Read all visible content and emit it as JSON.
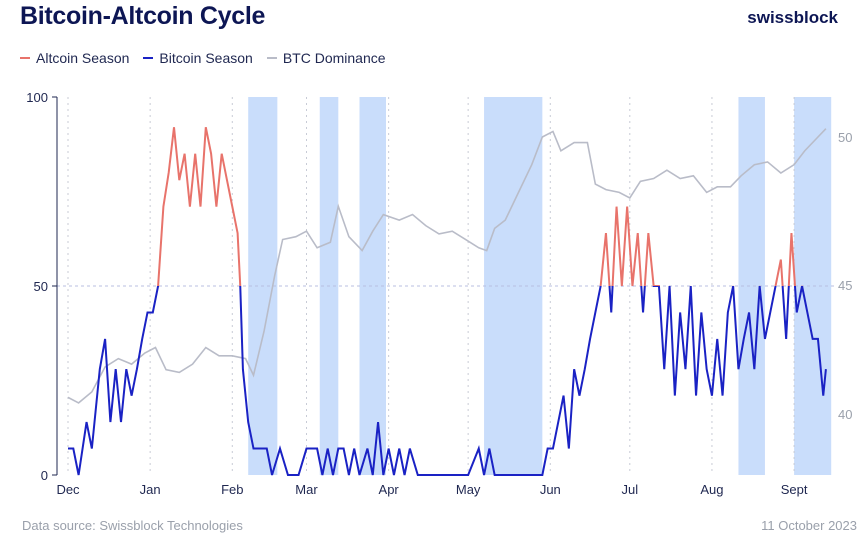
{
  "header": {
    "title": "Bitcoin-Altcoin Cycle",
    "logo": "swissblock"
  },
  "footer": {
    "source": "Data source: Swissblock Technologies",
    "date": "11 October 2023"
  },
  "chart_data": {
    "type": "line",
    "title": "Bitcoin-Altcoin Cycle",
    "legend_placement": "top-left",
    "grid": "dashed vertical at months, dashed horizontal at 50",
    "colors": {
      "altcoin": "#e8736b",
      "bitcoin": "#1a22c4",
      "dominance": "#b9bcc8",
      "shade": "#c9ddfb"
    },
    "x_ticks": [
      [
        "2022-12-01",
        "Dec"
      ],
      [
        "2023-01-01",
        "Jan"
      ],
      [
        "2023-02-01",
        "Feb"
      ],
      [
        "2023-03-01",
        "Mar"
      ],
      [
        "2023-04-01",
        "Apr"
      ],
      [
        "2023-05-01",
        "May"
      ],
      [
        "2023-06-01",
        "Jun"
      ],
      [
        "2023-07-01",
        "Jul"
      ],
      [
        "2023-08-01",
        "Aug"
      ],
      [
        "2023-09-01",
        "Sept"
      ]
    ],
    "y_left": {
      "range": [
        0,
        100
      ],
      "ticks": [
        "0",
        "50",
        "100"
      ]
    },
    "y_right": {
      "range": [
        40,
        50
      ],
      "ticks": [
        "40",
        "45",
        "50"
      ]
    },
    "shaded_periods": [
      [
        "2023-02-07",
        "2023-02-18"
      ],
      [
        "2023-03-06",
        "2023-03-13"
      ],
      [
        "2023-03-21",
        "2023-03-31"
      ],
      [
        "2023-05-07",
        "2023-05-29"
      ],
      [
        "2023-08-11",
        "2023-08-21"
      ],
      [
        "2023-09-01",
        "2023-09-15"
      ]
    ],
    "series": [
      {
        "name": "Altcoin Season",
        "note_axis": "left",
        "threshold_above": 50
      },
      {
        "name": "Bitcoin Season",
        "note_axis": "left"
      },
      {
        "name": "BTC Dominance",
        "note_axis": "right",
        "points": [
          [
            "2022-12-01",
            40.6
          ],
          [
            "2022-12-05",
            40.4
          ],
          [
            "2022-12-10",
            40.8
          ],
          [
            "2022-12-15",
            41.7
          ],
          [
            "2022-12-20",
            42.0
          ],
          [
            "2022-12-25",
            41.8
          ],
          [
            "2022-12-30",
            42.2
          ],
          [
            "2023-01-03",
            42.4
          ],
          [
            "2023-01-07",
            41.6
          ],
          [
            "2023-01-12",
            41.5
          ],
          [
            "2023-01-17",
            41.8
          ],
          [
            "2023-01-22",
            42.4
          ],
          [
            "2023-01-27",
            42.1
          ],
          [
            "2023-02-01",
            42.1
          ],
          [
            "2023-02-06",
            42.0
          ],
          [
            "2023-02-09",
            41.4
          ],
          [
            "2023-02-13",
            43.0
          ],
          [
            "2023-02-17",
            45.0
          ],
          [
            "2023-02-20",
            46.3
          ],
          [
            "2023-02-25",
            46.4
          ],
          [
            "2023-03-01",
            46.6
          ],
          [
            "2023-03-05",
            46.0
          ],
          [
            "2023-03-10",
            46.2
          ],
          [
            "2023-03-13",
            47.5
          ],
          [
            "2023-03-17",
            46.4
          ],
          [
            "2023-03-22",
            45.9
          ],
          [
            "2023-03-26",
            46.6
          ],
          [
            "2023-03-30",
            47.2
          ],
          [
            "2023-04-05",
            47.0
          ],
          [
            "2023-04-10",
            47.2
          ],
          [
            "2023-04-15",
            46.8
          ],
          [
            "2023-04-20",
            46.5
          ],
          [
            "2023-04-25",
            46.6
          ],
          [
            "2023-04-30",
            46.3
          ],
          [
            "2023-05-05",
            46.0
          ],
          [
            "2023-05-08",
            45.9
          ],
          [
            "2023-05-11",
            46.7
          ],
          [
            "2023-05-15",
            47.0
          ],
          [
            "2023-05-20",
            48.0
          ],
          [
            "2023-05-25",
            49.0
          ],
          [
            "2023-05-29",
            50.0
          ],
          [
            "2023-06-02",
            50.2
          ],
          [
            "2023-06-05",
            49.5
          ],
          [
            "2023-06-10",
            49.8
          ],
          [
            "2023-06-15",
            49.8
          ],
          [
            "2023-06-18",
            48.3
          ],
          [
            "2023-06-22",
            48.1
          ],
          [
            "2023-06-27",
            48.0
          ],
          [
            "2023-07-01",
            47.8
          ],
          [
            "2023-07-05",
            48.4
          ],
          [
            "2023-07-10",
            48.5
          ],
          [
            "2023-07-15",
            48.8
          ],
          [
            "2023-07-20",
            48.5
          ],
          [
            "2023-07-25",
            48.6
          ],
          [
            "2023-07-30",
            48.0
          ],
          [
            "2023-08-03",
            48.2
          ],
          [
            "2023-08-08",
            48.2
          ],
          [
            "2023-08-12",
            48.6
          ],
          [
            "2023-08-17",
            49.0
          ],
          [
            "2023-08-22",
            49.1
          ],
          [
            "2023-08-27",
            48.7
          ],
          [
            "2023-09-01",
            49.0
          ],
          [
            "2023-09-05",
            49.5
          ],
          [
            "2023-09-10",
            50.0
          ],
          [
            "2023-09-13",
            50.3
          ]
        ]
      }
    ],
    "cycle_score": [
      [
        "2022-12-01",
        7
      ],
      [
        "2022-12-03",
        7
      ],
      [
        "2022-12-05",
        0
      ],
      [
        "2022-12-08",
        14
      ],
      [
        "2022-12-10",
        7
      ],
      [
        "2022-12-13",
        28
      ],
      [
        "2022-12-15",
        36
      ],
      [
        "2022-12-17",
        14
      ],
      [
        "2022-12-19",
        28
      ],
      [
        "2022-12-21",
        14
      ],
      [
        "2022-12-23",
        28
      ],
      [
        "2022-12-25",
        21
      ],
      [
        "2022-12-27",
        28
      ],
      [
        "2022-12-29",
        36
      ],
      [
        "2022-12-31",
        43
      ],
      [
        "2023-01-02",
        43
      ],
      [
        "2023-01-04",
        50
      ],
      [
        "2023-01-06",
        71
      ],
      [
        "2023-01-08",
        80
      ],
      [
        "2023-01-10",
        92
      ],
      [
        "2023-01-12",
        78
      ],
      [
        "2023-01-14",
        85
      ],
      [
        "2023-01-16",
        71
      ],
      [
        "2023-01-18",
        85
      ],
      [
        "2023-01-20",
        71
      ],
      [
        "2023-01-22",
        92
      ],
      [
        "2023-01-24",
        85
      ],
      [
        "2023-01-26",
        71
      ],
      [
        "2023-01-28",
        85
      ],
      [
        "2023-01-30",
        78
      ],
      [
        "2023-02-01",
        71
      ],
      [
        "2023-02-03",
        64
      ],
      [
        "2023-02-04",
        50
      ],
      [
        "2023-02-05",
        28
      ],
      [
        "2023-02-07",
        14
      ],
      [
        "2023-02-09",
        7
      ],
      [
        "2023-02-14",
        7
      ],
      [
        "2023-02-16",
        0
      ],
      [
        "2023-02-19",
        7
      ],
      [
        "2023-02-22",
        0
      ],
      [
        "2023-02-26",
        0
      ],
      [
        "2023-03-01",
        7
      ],
      [
        "2023-03-05",
        7
      ],
      [
        "2023-03-07",
        0
      ],
      [
        "2023-03-09",
        7
      ],
      [
        "2023-03-11",
        0
      ],
      [
        "2023-03-13",
        7
      ],
      [
        "2023-03-15",
        7
      ],
      [
        "2023-03-17",
        0
      ],
      [
        "2023-03-19",
        7
      ],
      [
        "2023-03-21",
        0
      ],
      [
        "2023-03-24",
        7
      ],
      [
        "2023-03-26",
        0
      ],
      [
        "2023-03-28",
        14
      ],
      [
        "2023-03-30",
        0
      ],
      [
        "2023-04-01",
        7
      ],
      [
        "2023-04-03",
        0
      ],
      [
        "2023-04-05",
        7
      ],
      [
        "2023-04-07",
        0
      ],
      [
        "2023-04-09",
        7
      ],
      [
        "2023-04-12",
        0
      ],
      [
        "2023-04-20",
        0
      ],
      [
        "2023-05-01",
        0
      ],
      [
        "2023-05-05",
        7
      ],
      [
        "2023-05-07",
        0
      ],
      [
        "2023-05-09",
        7
      ],
      [
        "2023-05-11",
        0
      ],
      [
        "2023-05-20",
        0
      ],
      [
        "2023-05-29",
        0
      ],
      [
        "2023-05-31",
        7
      ],
      [
        "2023-06-02",
        7
      ],
      [
        "2023-06-04",
        14
      ],
      [
        "2023-06-06",
        21
      ],
      [
        "2023-06-08",
        7
      ],
      [
        "2023-06-10",
        28
      ],
      [
        "2023-06-12",
        21
      ],
      [
        "2023-06-14",
        28
      ],
      [
        "2023-06-16",
        36
      ],
      [
        "2023-06-18",
        43
      ],
      [
        "2023-06-20",
        50
      ],
      [
        "2023-06-22",
        64
      ],
      [
        "2023-06-24",
        43
      ],
      [
        "2023-06-26",
        71
      ],
      [
        "2023-06-28",
        50
      ],
      [
        "2023-06-30",
        71
      ],
      [
        "2023-07-02",
        50
      ],
      [
        "2023-07-04",
        64
      ],
      [
        "2023-07-06",
        43
      ],
      [
        "2023-07-08",
        64
      ],
      [
        "2023-07-10",
        50
      ],
      [
        "2023-07-12",
        50
      ],
      [
        "2023-07-14",
        28
      ],
      [
        "2023-07-16",
        50
      ],
      [
        "2023-07-18",
        21
      ],
      [
        "2023-07-20",
        43
      ],
      [
        "2023-07-22",
        28
      ],
      [
        "2023-07-24",
        50
      ],
      [
        "2023-07-26",
        21
      ],
      [
        "2023-07-28",
        43
      ],
      [
        "2023-07-30",
        28
      ],
      [
        "2023-08-01",
        21
      ],
      [
        "2023-08-03",
        36
      ],
      [
        "2023-08-05",
        21
      ],
      [
        "2023-08-07",
        43
      ],
      [
        "2023-08-09",
        50
      ],
      [
        "2023-08-11",
        28
      ],
      [
        "2023-08-13",
        36
      ],
      [
        "2023-08-15",
        43
      ],
      [
        "2023-08-17",
        28
      ],
      [
        "2023-08-19",
        50
      ],
      [
        "2023-08-21",
        36
      ],
      [
        "2023-08-23",
        43
      ],
      [
        "2023-08-25",
        50
      ],
      [
        "2023-08-27",
        57
      ],
      [
        "2023-08-29",
        36
      ],
      [
        "2023-08-31",
        64
      ],
      [
        "2023-09-02",
        43
      ],
      [
        "2023-09-04",
        50
      ],
      [
        "2023-09-06",
        43
      ],
      [
        "2023-09-08",
        36
      ],
      [
        "2023-09-10",
        36
      ],
      [
        "2023-09-12",
        21
      ],
      [
        "2023-09-13",
        28
      ]
    ]
  }
}
